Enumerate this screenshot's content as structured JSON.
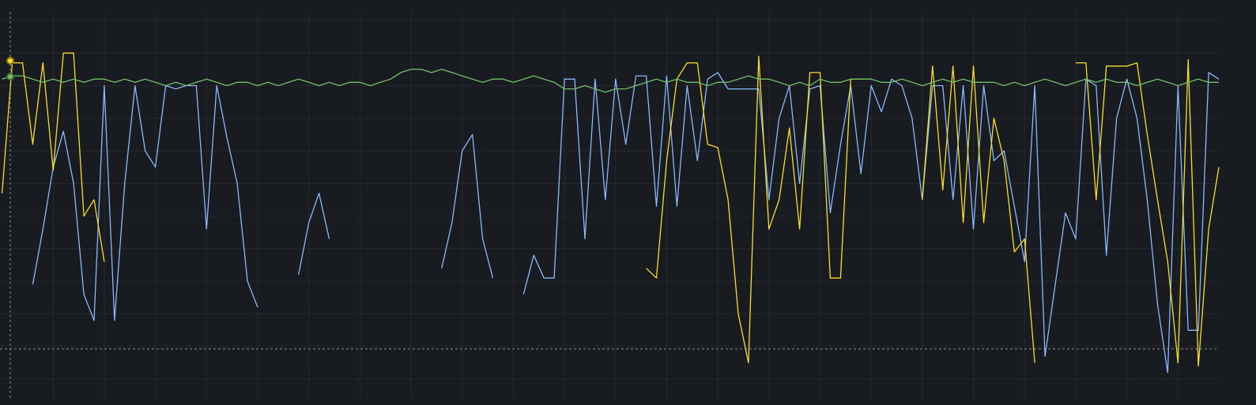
{
  "chart_data": {
    "type": "line",
    "x": [
      0,
      2,
      4,
      6,
      8,
      10,
      12,
      14,
      16,
      18,
      20,
      22,
      24,
      26,
      28,
      30,
      32,
      34,
      36,
      38,
      40,
      42,
      44,
      46,
      48,
      50,
      52,
      54,
      56,
      58,
      60,
      62,
      64,
      66,
      68,
      70,
      72,
      74,
      76,
      78,
      80,
      82,
      84,
      86,
      88,
      90,
      92,
      94,
      96,
      98,
      100,
      102,
      104,
      106,
      108,
      110,
      112,
      114,
      116,
      118,
      120,
      122,
      124,
      126,
      128,
      130,
      132,
      134,
      136,
      138,
      140,
      142,
      144,
      146,
      148,
      150,
      152,
      154,
      156,
      158,
      160,
      162,
      164,
      166,
      168,
      170,
      172,
      174,
      176,
      178,
      180,
      182,
      184,
      186,
      188,
      190,
      192,
      194,
      196,
      198,
      200,
      202,
      204,
      206,
      208,
      210,
      212,
      214,
      216,
      218,
      220,
      222,
      224,
      226,
      228,
      230,
      232,
      234,
      236,
      238
    ],
    "series": [
      {
        "color": "#8ab8ff",
        "values": [
          null,
          null,
          null,
          29,
          46,
          65,
          76,
          60,
          26,
          18,
          90,
          18,
          60,
          90,
          70,
          65,
          90,
          89,
          90,
          90,
          46,
          90,
          74,
          60,
          30,
          22,
          null,
          null,
          null,
          32,
          48,
          57,
          43,
          null,
          null,
          null,
          null,
          null,
          null,
          null,
          null,
          null,
          null,
          34,
          48,
          70,
          75,
          43,
          31,
          null,
          null,
          26,
          38,
          31,
          31,
          92,
          92,
          43,
          92,
          55,
          92,
          72,
          93,
          93,
          53,
          93,
          53,
          90,
          67,
          92,
          94,
          89,
          89,
          89,
          89,
          55,
          80,
          90,
          60,
          89,
          90,
          51,
          72,
          90,
          63,
          90,
          82,
          92,
          90,
          80,
          55,
          90,
          90,
          55,
          90,
          46,
          90,
          67,
          70,
          53,
          36,
          90,
          7,
          29,
          51,
          43,
          92,
          90,
          38,
          80,
          92,
          80,
          55,
          23,
          2,
          90,
          15,
          15,
          94,
          92
        ]
      },
      {
        "color": "#fade2a",
        "values": [
          57,
          97,
          97,
          72,
          97,
          64,
          100,
          100,
          50,
          55,
          36,
          null,
          null,
          null,
          null,
          null,
          null,
          null,
          null,
          null,
          null,
          null,
          null,
          null,
          null,
          null,
          null,
          null,
          null,
          null,
          null,
          null,
          null,
          null,
          null,
          null,
          null,
          null,
          null,
          null,
          null,
          null,
          null,
          null,
          null,
          null,
          null,
          null,
          null,
          null,
          null,
          null,
          null,
          null,
          null,
          null,
          null,
          null,
          null,
          null,
          null,
          null,
          null,
          34,
          31,
          67,
          92,
          97,
          97,
          72,
          71,
          55,
          20,
          5,
          99,
          46,
          55,
          77,
          46,
          94,
          94,
          31,
          31,
          92,
          92,
          null,
          null,
          null,
          null,
          null,
          55,
          96,
          58,
          96,
          48,
          96,
          48,
          80,
          67,
          39,
          43,
          5,
          null,
          null,
          null,
          97,
          97,
          55,
          96,
          96,
          96,
          97,
          75,
          55,
          36,
          5,
          98,
          4,
          46,
          65
        ]
      },
      {
        "color": "#73bf69",
        "values": [
          92,
          93,
          93,
          92,
          91,
          92,
          91,
          92,
          91,
          92,
          92,
          91,
          92,
          91,
          92,
          91,
          90,
          91,
          90,
          91,
          92,
          91,
          90,
          91,
          91,
          90,
          91,
          90,
          91,
          92,
          91,
          90,
          91,
          90,
          91,
          91,
          90,
          91,
          92,
          94,
          95,
          95,
          94,
          95,
          94,
          93,
          92,
          91,
          92,
          92,
          91,
          92,
          93,
          92,
          91,
          89,
          89,
          90,
          89,
          88,
          89,
          89,
          90,
          91,
          92,
          91,
          92,
          91,
          91,
          90,
          91,
          91,
          92,
          93,
          92,
          92,
          91,
          90,
          91,
          90,
          92,
          91,
          91,
          92,
          92,
          92,
          91,
          91,
          92,
          91,
          90,
          91,
          92,
          91,
          92,
          91,
          91,
          91,
          90,
          91,
          90,
          91,
          92,
          91,
          90,
          91,
          92,
          91,
          92,
          91,
          91,
          90,
          91,
          92,
          91,
          90,
          91,
          92,
          91,
          91
        ]
      }
    ],
    "xlim": [
      -0.4,
      238
    ],
    "ylim": [
      -6,
      112
    ],
    "xticks": [
      10,
      20,
      30,
      40,
      50,
      60,
      70,
      80,
      90,
      100,
      110,
      120,
      130,
      140,
      150,
      160,
      170,
      180,
      190,
      200,
      210,
      220,
      230
    ],
    "yticks": [
      0,
      10,
      20,
      30,
      40,
      50,
      60,
      70,
      80,
      90,
      100,
      110
    ],
    "grid": true
  }
}
